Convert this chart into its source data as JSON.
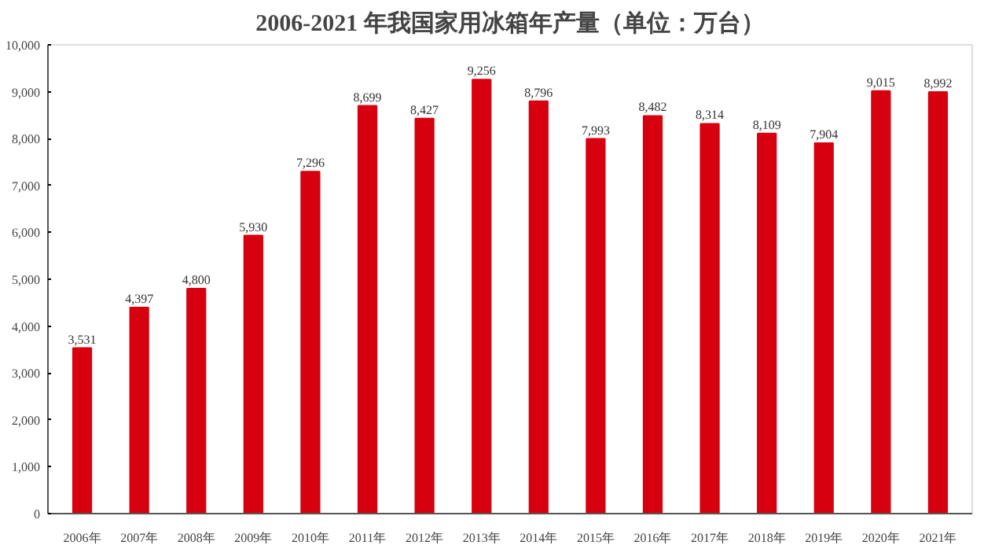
{
  "chart_data": {
    "type": "bar",
    "title": "2006-2021 年我国家用冰箱年产量（单位：万台）",
    "categories": [
      "2006年",
      "2007年",
      "2008年",
      "2009年",
      "2010年",
      "2011年",
      "2012年",
      "2013年",
      "2014年",
      "2015年",
      "2016年",
      "2017年",
      "2018年",
      "2019年",
      "2020年",
      "2021年"
    ],
    "values": [
      3531,
      4397,
      4800,
      5930,
      7296,
      8699,
      8427,
      9256,
      8796,
      7993,
      8482,
      8314,
      8109,
      7904,
      9015,
      8992
    ],
    "color": "#d7000f",
    "ylim": [
      0,
      10000
    ],
    "yticks": [
      0,
      {
        "value": 1000,
        "label": "1,000"
      },
      {
        "value": 2000,
        "label": "2,000"
      },
      {
        "value": 3000,
        "label": "3,000"
      },
      {
        "value": 4000,
        "label": "4,000"
      },
      {
        "value": 5000,
        "label": "5,000"
      },
      {
        "value": 6000,
        "label": "6,000"
      },
      {
        "value": 7000,
        "label": "7,000"
      },
      {
        "value": 8000,
        "label": "8,000"
      },
      {
        "value": 9000,
        "label": "9,000"
      },
      {
        "value": 10000,
        "label": "10,000"
      }
    ],
    "value_labels": [
      "3,531",
      "4,397",
      "4,800",
      "5,930",
      "7,296",
      "8,699",
      "8,427",
      "9,256",
      "8,796",
      "7,993",
      "8,482",
      "8,314",
      "8,109",
      "7,904",
      "9,015",
      "8,992"
    ],
    "grid": false
  }
}
